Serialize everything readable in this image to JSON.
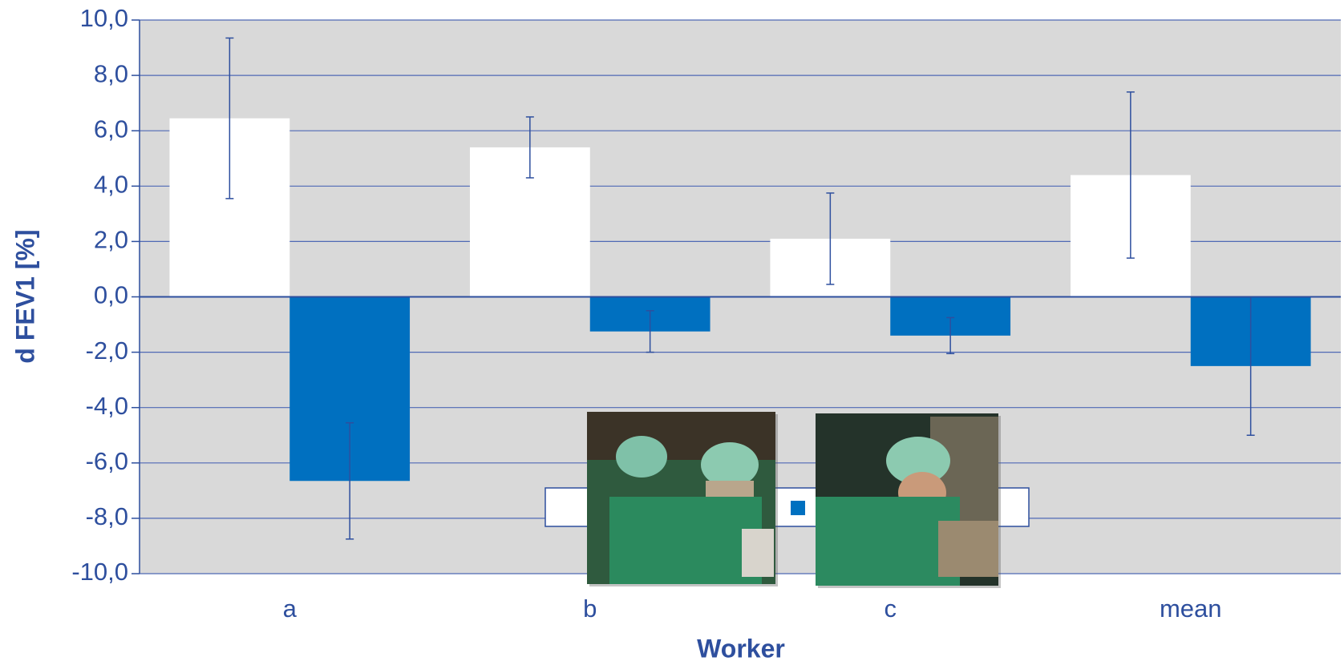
{
  "chart_data": {
    "type": "bar",
    "x_label": "Worker",
    "y_label": "d FEV1 [%]",
    "categories": [
      "a",
      "b",
      "c",
      "mean"
    ],
    "series": [
      {
        "color": "#ffffff",
        "values": [
          6.45,
          5.4,
          2.1,
          4.4
        ],
        "errors": [
          2.9,
          1.1,
          1.65,
          3.0
        ]
      },
      {
        "color": "#0070c0",
        "values": [
          -6.65,
          -1.25,
          -1.4,
          -2.5
        ],
        "errors": [
          2.1,
          0.75,
          0.65,
          2.5
        ]
      }
    ],
    "ylim": [
      -10,
      10
    ],
    "yticks": [
      {
        "value": -10,
        "label": "-10,0"
      },
      {
        "value": -8,
        "label": "-8,0"
      },
      {
        "value": -6,
        "label": "-6,0"
      },
      {
        "value": -4,
        "label": "-4,0"
      },
      {
        "value": -2,
        "label": "-2,0"
      },
      {
        "value": 0,
        "label": "0,0"
      },
      {
        "value": 2,
        "label": "2,0"
      },
      {
        "value": 4,
        "label": "4,0"
      },
      {
        "value": 6,
        "label": "6,0"
      },
      {
        "value": 8,
        "label": "8,0"
      },
      {
        "value": 10,
        "label": "10,0"
      }
    ],
    "grid": true
  }
}
